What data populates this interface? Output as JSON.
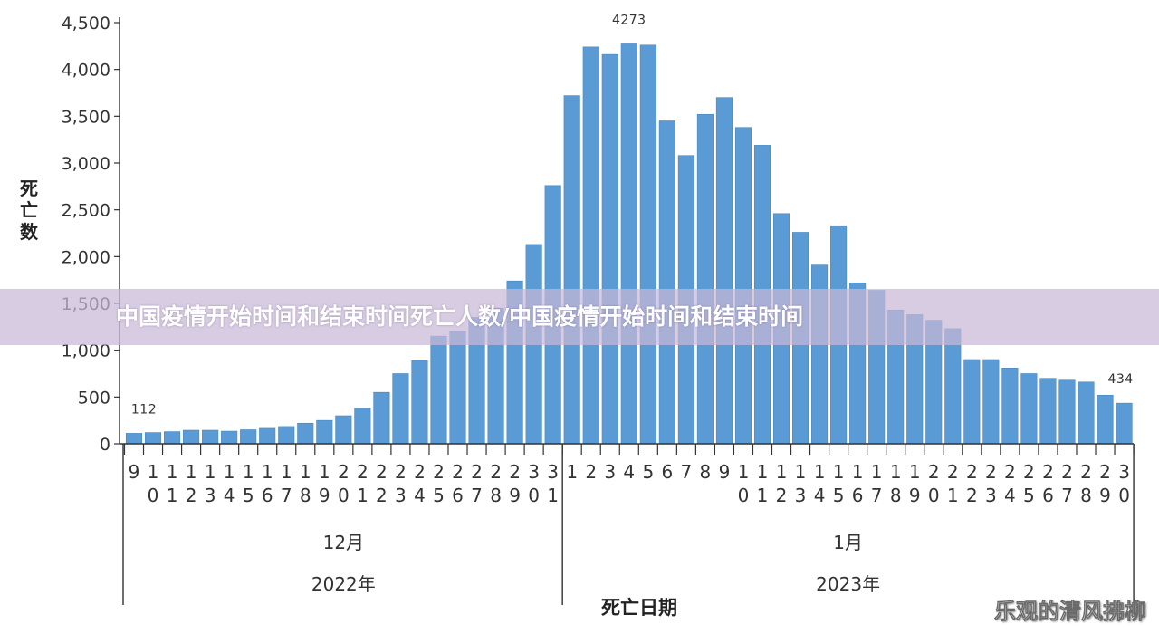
{
  "chart_data": {
    "type": "bar",
    "ylabel": "死亡数",
    "xlabel": "死亡日期",
    "ylim": [
      0,
      4500
    ],
    "yticks": [
      "0",
      "500",
      "1,000",
      "1,500",
      "2,000",
      "2,500",
      "3,000",
      "3,500",
      "4,000",
      "4,500"
    ],
    "grid": false,
    "categories": [
      "9",
      "10",
      "11",
      "12",
      "13",
      "14",
      "15",
      "16",
      "17",
      "18",
      "19",
      "20",
      "21",
      "22",
      "23",
      "24",
      "25",
      "26",
      "27",
      "28",
      "29",
      "30",
      "31",
      "1",
      "2",
      "3",
      "4",
      "5",
      "6",
      "7",
      "8",
      "9",
      "10",
      "11",
      "12",
      "13",
      "14",
      "15",
      "16",
      "17",
      "18",
      "19",
      "20",
      "21",
      "22",
      "23",
      "24",
      "25",
      "26",
      "27",
      "28",
      "29",
      "30"
    ],
    "values": [
      112,
      120,
      130,
      145,
      145,
      135,
      150,
      165,
      185,
      220,
      250,
      300,
      380,
      550,
      750,
      890,
      1150,
      1200,
      1350,
      1450,
      1740,
      2130,
      2760,
      3720,
      4240,
      4160,
      4273,
      4260,
      3450,
      3080,
      3520,
      3700,
      3380,
      3190,
      2460,
      2260,
      1910,
      2330,
      1720,
      1640,
      1430,
      1380,
      1320,
      1230,
      900,
      900,
      810,
      750,
      700,
      680,
      660,
      520,
      434
    ],
    "annotations": [
      {
        "index": 0,
        "text": "112"
      },
      {
        "index": 26,
        "text": "4273"
      },
      {
        "index": 52,
        "text": "434"
      }
    ],
    "month_labels": [
      {
        "text": "12月",
        "from": 0,
        "to": 22
      },
      {
        "text": "1月",
        "from": 23,
        "to": 52
      }
    ],
    "year_labels": [
      {
        "text": "2022年",
        "from": 0,
        "to": 22
      },
      {
        "text": "2023年",
        "from": 23,
        "to": 52
      }
    ]
  },
  "banner": {
    "title": "中国疫情开始时间和结束时间死亡人数/中国疫情开始时间和结束时间"
  },
  "watermark": {
    "text": "乐观的清风拂柳"
  }
}
